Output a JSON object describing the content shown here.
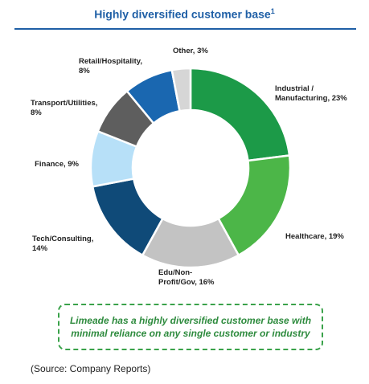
{
  "header": {
    "title": "Highly diversified customer base",
    "footnote_marker": "1"
  },
  "chart_data": {
    "type": "pie",
    "donut": true,
    "slices": [
      {
        "label_lines": [
          "Industrial /",
          "Manufacturing, 23%"
        ],
        "value": 23,
        "color": "#1c9a48"
      },
      {
        "label_lines": [
          "Healthcare, 19%"
        ],
        "value": 19,
        "color": "#4cb648"
      },
      {
        "label_lines": [
          "Edu/Non-",
          "Profit/Gov, 16%"
        ],
        "value": 16,
        "color": "#c3c3c3"
      },
      {
        "label_lines": [
          "Tech/Consulting,",
          "14%"
        ],
        "value": 14,
        "color": "#0f4a78"
      },
      {
        "label_lines": [
          "Finance, 9%"
        ],
        "value": 9,
        "color": "#b7e0f8"
      },
      {
        "label_lines": [
          "Transport/Utilities,",
          "8%"
        ],
        "value": 8,
        "color": "#5e5e5e"
      },
      {
        "label_lines": [
          "Retail/Hospitality,",
          "8%"
        ],
        "value": 8,
        "color": "#1a67b0"
      },
      {
        "label_lines": [
          "Other, 3%"
        ],
        "value": 3,
        "color": "#d6d6d6"
      }
    ]
  },
  "callout": {
    "text": "Limeade has a highly diversified customer base with minimal reliance on any single customer or industry"
  },
  "source": {
    "text": "(Source: Company Reports)"
  }
}
